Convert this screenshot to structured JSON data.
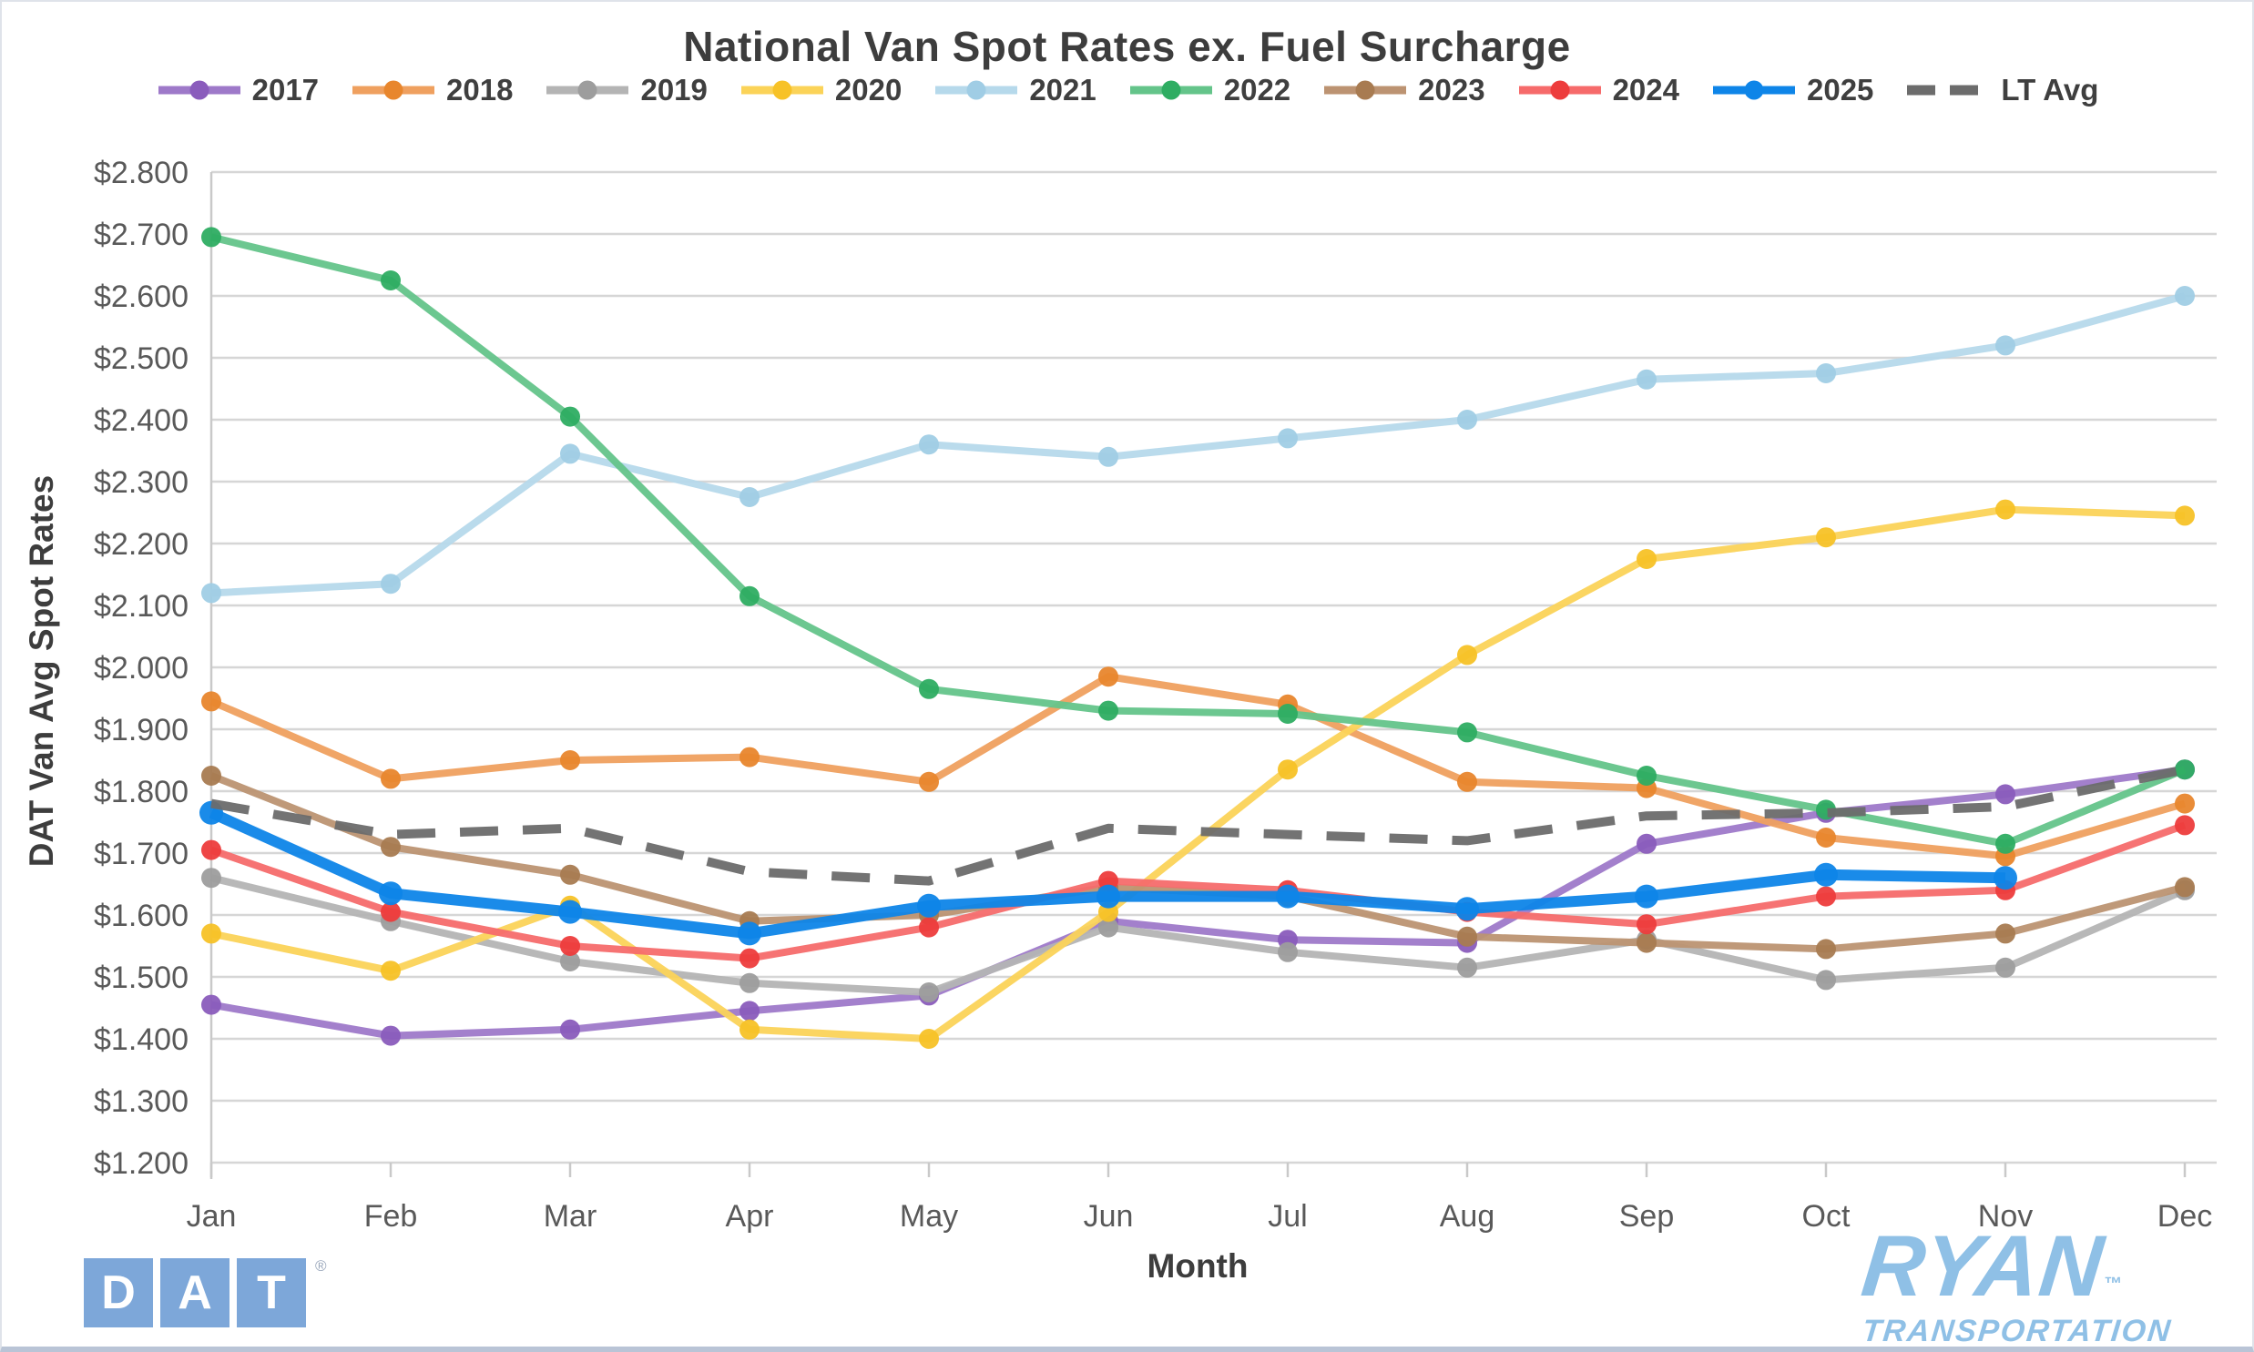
{
  "title": "National Van Spot Rates ex. Fuel Surcharge",
  "x_axis_title": "Month",
  "y_axis_title": "DAT Van Avg Spot Rates",
  "colors": {
    "title_text": "#3d3d3d",
    "tick_text": "#595959",
    "gridline": "#d6d6d6",
    "axis_line": "#c9c9c9"
  },
  "logos": {
    "dat": {
      "letters": [
        "D",
        "A",
        "T"
      ],
      "registered_mark": "®",
      "square_color": "#7da7d9"
    },
    "ryan": {
      "name": "RYAN",
      "trademark": "™",
      "subtitle": "TRANSPORTATION",
      "color": "#8fc0e6"
    }
  },
  "chart_data": {
    "type": "line",
    "title": "National Van Spot Rates ex. Fuel Surcharge",
    "xlabel": "Month",
    "ylabel": "DAT Van Avg Spot Rates",
    "legend_position": "top",
    "grid": true,
    "ylim": [
      1.2,
      2.8
    ],
    "y_tick_step": 0.1,
    "y_tick_labels": [
      "$2.800",
      "$2.700",
      "$2.600",
      "$2.500",
      "$2.400",
      "$2.300",
      "$2.200",
      "$2.100",
      "$2.000",
      "$1.900",
      "$1.800",
      "$1.700",
      "$1.600",
      "$1.500",
      "$1.400",
      "$1.300",
      "$1.200"
    ],
    "categories": [
      "Jan",
      "Feb",
      "Mar",
      "Apr",
      "May",
      "Jun",
      "Jul",
      "Aug",
      "Sep",
      "Oct",
      "Nov",
      "Dec"
    ],
    "series": [
      {
        "name": "2017",
        "color": "#9e79c9",
        "dot_color": "#8a5cbc",
        "width": 8,
        "values": [
          1.455,
          1.405,
          1.415,
          1.445,
          1.47,
          1.59,
          1.56,
          1.555,
          1.715,
          1.765,
          1.795,
          1.835
        ]
      },
      {
        "name": "2018",
        "color": "#efa05f",
        "dot_color": "#e8862d",
        "width": 8,
        "values": [
          1.945,
          1.82,
          1.85,
          1.855,
          1.815,
          1.985,
          1.94,
          1.815,
          1.805,
          1.725,
          1.695,
          1.78
        ]
      },
      {
        "name": "2019",
        "color": "#b4b4b4",
        "dot_color": "#9d9d9d",
        "width": 8,
        "values": [
          1.66,
          1.59,
          1.525,
          1.49,
          1.475,
          1.58,
          1.54,
          1.515,
          1.56,
          1.495,
          1.515,
          1.64
        ]
      },
      {
        "name": "2020",
        "color": "#fbd358",
        "dot_color": "#f7c227",
        "width": 8,
        "values": [
          1.57,
          1.51,
          1.615,
          1.415,
          1.4,
          1.605,
          1.835,
          2.02,
          2.175,
          2.21,
          2.255,
          2.245
        ]
      },
      {
        "name": "2021",
        "color": "#b6d9eb",
        "dot_color": "#a0cde5",
        "width": 8,
        "values": [
          2.12,
          2.135,
          2.345,
          2.275,
          2.36,
          2.34,
          2.37,
          2.4,
          2.465,
          2.475,
          2.52,
          2.6
        ]
      },
      {
        "name": "2022",
        "color": "#64c48a",
        "dot_color": "#2ead62",
        "width": 8,
        "values": [
          2.695,
          2.625,
          2.405,
          2.115,
          1.965,
          1.93,
          1.925,
          1.895,
          1.825,
          1.77,
          1.715,
          1.835
        ]
      },
      {
        "name": "2023",
        "color": "#bc9372",
        "dot_color": "#a87b51",
        "width": 8,
        "values": [
          1.825,
          1.71,
          1.665,
          1.59,
          1.6,
          1.645,
          1.63,
          1.565,
          1.555,
          1.545,
          1.57,
          1.645
        ]
      },
      {
        "name": "2024",
        "color": "#f66b6b",
        "dot_color": "#ed3c3c",
        "width": 8,
        "values": [
          1.705,
          1.605,
          1.55,
          1.53,
          1.58,
          1.655,
          1.64,
          1.605,
          1.585,
          1.63,
          1.64,
          1.745
        ]
      },
      {
        "name": "2025",
        "color": "#0e85e8",
        "dot_color": "#0e85e8",
        "width": 12,
        "values": [
          1.765,
          1.635,
          1.605,
          1.57,
          1.615,
          1.63,
          1.63,
          1.61,
          1.63,
          1.665,
          1.66
        ]
      },
      {
        "name": "LT Avg",
        "color": "#6c6c6c",
        "dashed": true,
        "width": 10,
        "values": [
          1.78,
          1.73,
          1.74,
          1.67,
          1.655,
          1.74,
          1.73,
          1.72,
          1.76,
          1.765,
          1.775,
          1.835
        ]
      }
    ]
  }
}
